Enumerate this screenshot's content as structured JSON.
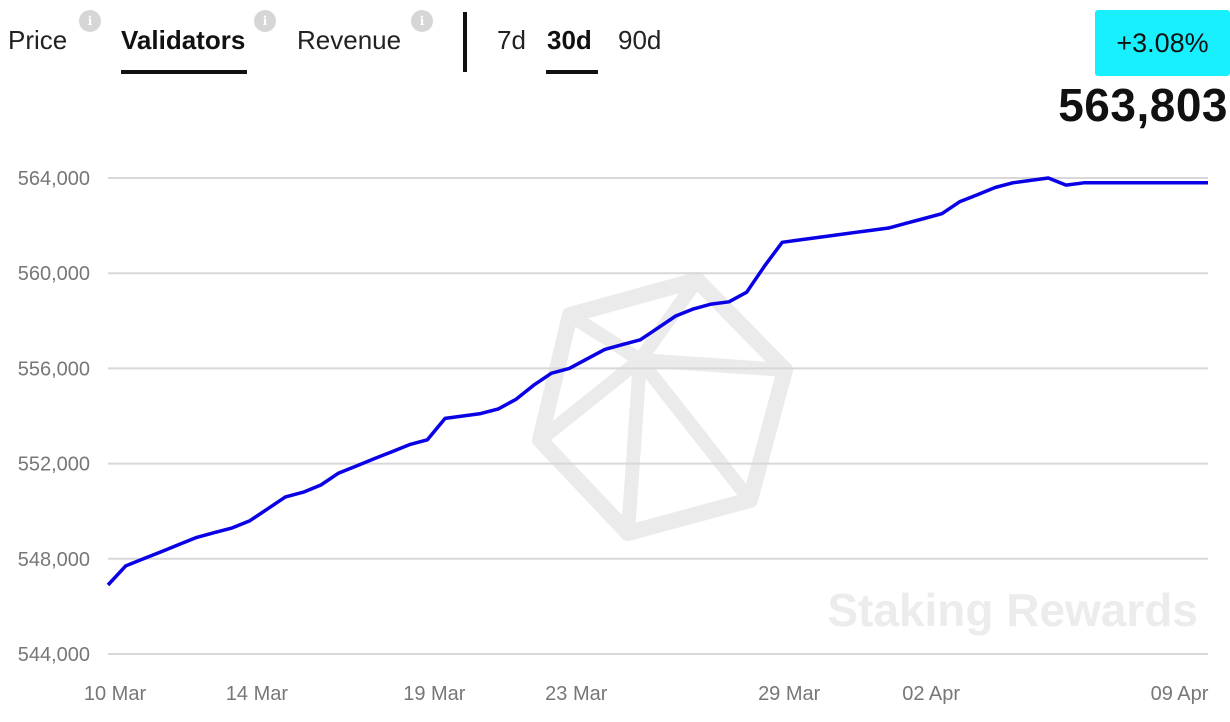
{
  "tabs": {
    "metrics": [
      {
        "label": "Price",
        "active": false
      },
      {
        "label": "Validators",
        "active": true
      },
      {
        "label": "Revenue",
        "active": false
      }
    ],
    "info_icon_glyph": "i",
    "ranges": [
      {
        "label": "7d",
        "active": false
      },
      {
        "label": "30d",
        "active": true
      },
      {
        "label": "90d",
        "active": false
      }
    ]
  },
  "summary": {
    "change": "+3.08%",
    "change_color": "#19f0ff",
    "value": "563,803"
  },
  "watermark": "Staking Rewards",
  "chart_data": {
    "type": "line",
    "title": "",
    "xlabel": "",
    "ylabel": "",
    "line_color": "#0a00e6",
    "grid": true,
    "ylim": [
      544000,
      564000
    ],
    "yticks": [
      "564,000",
      "560,000",
      "556,000",
      "552,000",
      "548,000",
      "544,000"
    ],
    "ytick_values": [
      564000,
      560000,
      556000,
      552000,
      548000,
      544000
    ],
    "xticks": [
      "10 Mar",
      "14 Mar",
      "19 Mar",
      "23 Mar",
      "29 Mar",
      "02 Apr",
      "09 Apr"
    ],
    "xtick_days": [
      0,
      4,
      9,
      13,
      19,
      23,
      30
    ],
    "x_unit": "days since 10 Mar",
    "x": [
      0,
      0.5,
      1,
      1.5,
      2,
      2.5,
      3,
      3.5,
      4,
      4.5,
      5,
      5.5,
      6,
      6.5,
      7,
      7.5,
      8,
      8.5,
      9,
      9.5,
      10,
      10.5,
      11,
      11.5,
      12,
      12.5,
      13,
      13.5,
      14,
      14.5,
      15,
      15.5,
      16,
      16.5,
      17,
      17.5,
      18,
      18.5,
      19,
      19.5,
      20,
      20.5,
      21,
      21.5,
      22,
      22.5,
      23,
      23.5,
      24,
      24.5,
      25,
      25.5,
      26,
      26.5,
      27,
      27.5,
      28,
      28.5,
      29,
      29.5,
      30,
      30.5,
      30.7,
      31
    ],
    "values": [
      546900,
      547700,
      548000,
      548300,
      548600,
      548900,
      549100,
      549300,
      549600,
      550100,
      550600,
      550800,
      551100,
      551600,
      551900,
      552200,
      552500,
      552800,
      553000,
      553900,
      554000,
      554100,
      554300,
      554700,
      555300,
      555800,
      556000,
      556400,
      556800,
      557000,
      557200,
      557700,
      558200,
      558500,
      558700,
      558800,
      559200,
      560300,
      561300,
      561400,
      561500,
      561600,
      561700,
      561800,
      561900,
      562100,
      562300,
      562500,
      563000,
      563300,
      563600,
      563800,
      563900,
      564000,
      563700,
      563800,
      563800,
      563800,
      563800,
      563800,
      563800,
      563800,
      563803,
      563803
    ]
  }
}
